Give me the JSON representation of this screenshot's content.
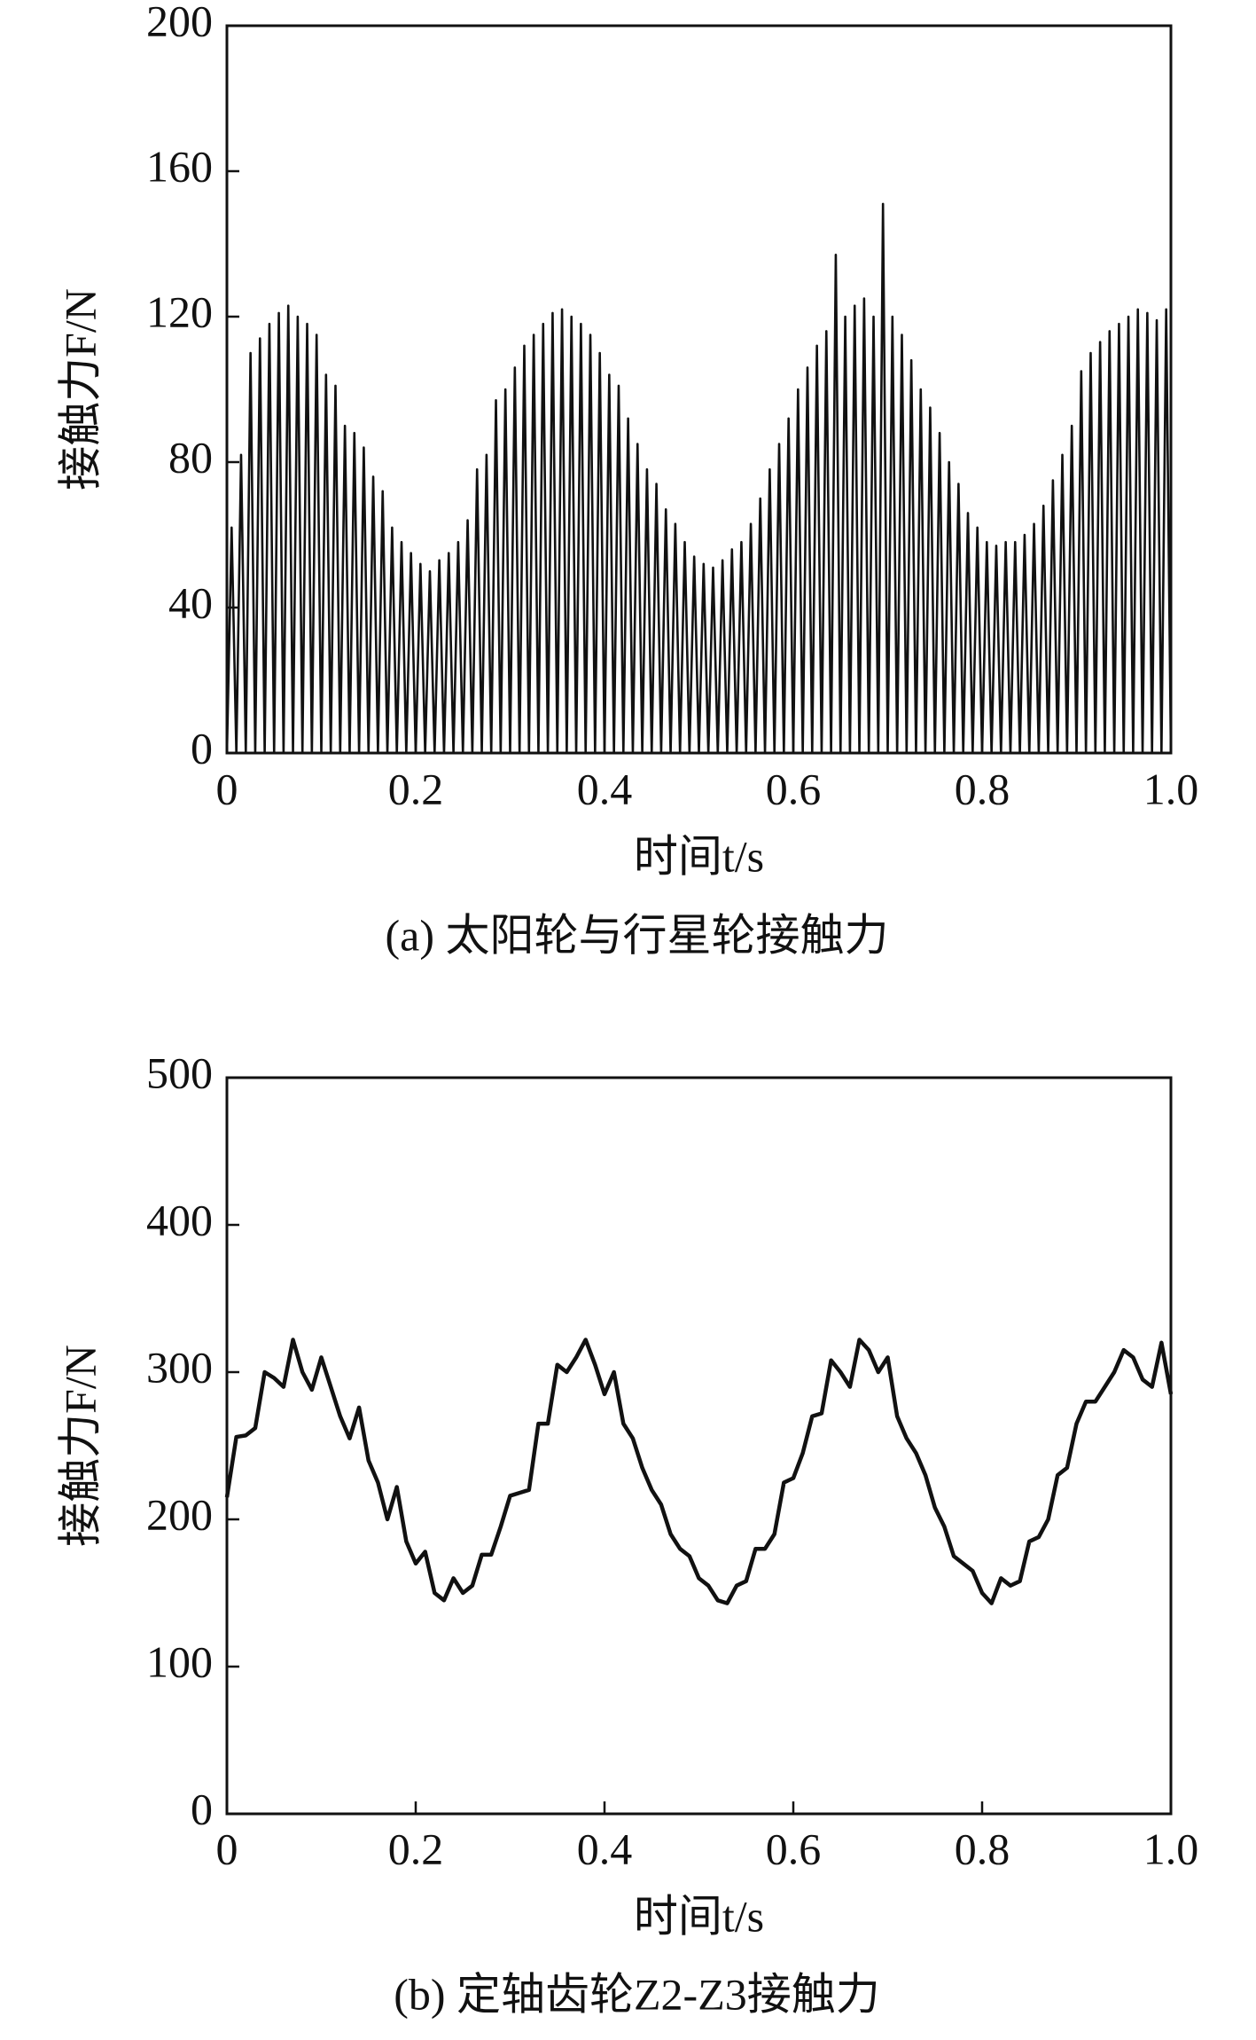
{
  "chart_data": [
    {
      "type": "line",
      "caption": "(a) 太阳轮与行星轮接触力",
      "x_label": "时间t/s",
      "y_label": "接触力F/N",
      "xlim": [
        0,
        1
      ],
      "xticks": [
        0,
        0.2,
        0.4,
        0.6,
        0.8,
        {
          "value": 1,
          "label": "1.0"
        }
      ],
      "ylim": [
        0,
        200
      ],
      "yticks": [
        0,
        40,
        80,
        120,
        160,
        200
      ],
      "x": [
        0,
        0.005,
        0.01,
        0.015,
        0.02,
        0.025,
        0.03,
        0.035,
        0.04,
        0.045,
        0.05,
        0.055,
        0.06,
        0.065,
        0.07,
        0.075,
        0.08,
        0.085,
        0.09,
        0.095,
        0.1,
        0.105,
        0.11,
        0.115,
        0.12,
        0.125,
        0.13,
        0.135,
        0.14,
        0.145,
        0.15,
        0.155,
        0.16,
        0.165,
        0.17,
        0.175,
        0.18,
        0.185,
        0.19,
        0.195,
        0.2,
        0.205,
        0.21,
        0.215,
        0.22,
        0.225,
        0.23,
        0.235,
        0.24,
        0.245,
        0.25,
        0.255,
        0.26,
        0.265,
        0.27,
        0.275,
        0.28,
        0.285,
        0.29,
        0.295,
        0.3,
        0.305,
        0.31,
        0.315,
        0.32,
        0.325,
        0.33,
        0.335,
        0.34,
        0.345,
        0.35,
        0.355,
        0.36,
        0.365,
        0.37,
        0.375,
        0.38,
        0.385,
        0.39,
        0.395,
        0.4,
        0.405,
        0.41,
        0.415,
        0.42,
        0.425,
        0.43,
        0.435,
        0.44,
        0.445,
        0.45,
        0.455,
        0.46,
        0.465,
        0.47,
        0.475,
        0.48,
        0.485,
        0.49,
        0.495,
        0.5,
        0.505,
        0.51,
        0.515,
        0.52,
        0.525,
        0.53,
        0.535,
        0.54,
        0.545,
        0.55,
        0.555,
        0.56,
        0.565,
        0.57,
        0.575,
        0.58,
        0.585,
        0.59,
        0.595,
        0.6,
        0.605,
        0.61,
        0.615,
        0.62,
        0.625,
        0.63,
        0.635,
        0.64,
        0.645,
        0.65,
        0.655,
        0.66,
        0.665,
        0.67,
        0.675,
        0.68,
        0.685,
        0.69,
        0.695,
        0.7,
        0.705,
        0.71,
        0.715,
        0.72,
        0.725,
        0.73,
        0.735,
        0.74,
        0.745,
        0.75,
        0.755,
        0.76,
        0.765,
        0.77,
        0.775,
        0.78,
        0.785,
        0.79,
        0.795,
        0.8,
        0.805,
        0.81,
        0.815,
        0.82,
        0.825,
        0.83,
        0.835,
        0.84,
        0.845,
        0.85,
        0.855,
        0.86,
        0.865,
        0.87,
        0.875,
        0.88,
        0.885,
        0.89,
        0.895,
        0.9,
        0.905,
        0.91,
        0.915,
        0.92,
        0.925,
        0.93,
        0.935,
        0.94,
        0.945,
        0.95,
        0.955,
        0.96,
        0.965,
        0.97,
        0.975,
        0.98,
        0.985,
        0.99,
        0.995,
        1
      ],
      "series": [
        {
          "color": "#111111",
          "values": [
            0,
            62,
            0,
            82,
            0,
            110,
            0,
            114,
            0,
            118,
            0,
            121,
            0,
            123,
            0,
            120,
            0,
            118,
            0,
            115,
            0,
            104,
            0,
            101,
            0,
            90,
            0,
            88,
            0,
            84,
            0,
            76,
            0,
            72,
            0,
            62,
            0,
            58,
            0,
            55,
            0,
            52,
            0,
            50,
            0,
            53,
            0,
            55,
            0,
            58,
            0,
            64,
            0,
            78,
            0,
            82,
            0,
            97,
            0,
            100,
            0,
            106,
            0,
            112,
            0,
            115,
            0,
            118,
            0,
            121,
            0,
            122,
            0,
            120,
            0,
            118,
            0,
            115,
            0,
            110,
            0,
            104,
            0,
            101,
            0,
            92,
            0,
            85,
            0,
            78,
            0,
            74,
            0,
            67,
            0,
            63,
            0,
            58,
            0,
            54,
            0,
            52,
            0,
            51,
            0,
            53,
            0,
            56,
            0,
            58,
            0,
            63,
            0,
            70,
            0,
            78,
            0,
            85,
            0,
            92,
            0,
            100,
            0,
            106,
            0,
            112,
            0,
            116,
            0,
            137,
            0,
            120,
            0,
            123,
            0,
            125,
            0,
            120,
            0,
            151,
            0,
            120,
            0,
            115,
            0,
            108,
            0,
            100,
            0,
            95,
            0,
            88,
            0,
            80,
            0,
            74,
            0,
            66,
            0,
            62,
            0,
            58,
            0,
            57,
            0,
            58,
            0,
            58,
            0,
            60,
            0,
            63,
            0,
            68,
            0,
            75,
            0,
            82,
            0,
            90,
            0,
            105,
            0,
            110,
            0,
            113,
            0,
            116,
            0,
            118,
            0,
            120,
            0,
            122,
            0,
            121,
            0,
            119,
            0,
            122,
            0
          ]
        }
      ]
    },
    {
      "type": "line",
      "caption": "(b) 定轴齿轮Z2-Z3接触力",
      "x_label": "时间t/s",
      "y_label": "接触力F/N",
      "xlim": [
        0,
        1
      ],
      "xticks": [
        0,
        0.2,
        0.4,
        0.6,
        0.8,
        {
          "value": 1,
          "label": "1.0"
        }
      ],
      "ylim": [
        0,
        500
      ],
      "yticks": [
        0,
        100,
        200,
        300,
        400,
        500
      ],
      "x": [
        0,
        0.01,
        0.02,
        0.03,
        0.04,
        0.05,
        0.06,
        0.07,
        0.08,
        0.09,
        0.1,
        0.11,
        0.12,
        0.13,
        0.14,
        0.15,
        0.16,
        0.17,
        0.18,
        0.19,
        0.2,
        0.21,
        0.22,
        0.23,
        0.24,
        0.25,
        0.26,
        0.27,
        0.28,
        0.29,
        0.3,
        0.31,
        0.32,
        0.33,
        0.34,
        0.35,
        0.36,
        0.37,
        0.38,
        0.39,
        0.4,
        0.41,
        0.42,
        0.43,
        0.44,
        0.45,
        0.46,
        0.47,
        0.48,
        0.49,
        0.5,
        0.51,
        0.52,
        0.53,
        0.54,
        0.55,
        0.56,
        0.57,
        0.58,
        0.59,
        0.6,
        0.61,
        0.62,
        0.63,
        0.64,
        0.65,
        0.66,
        0.67,
        0.68,
        0.69,
        0.7,
        0.71,
        0.72,
        0.73,
        0.74,
        0.75,
        0.76,
        0.77,
        0.78,
        0.79,
        0.8,
        0.81,
        0.82,
        0.83,
        0.84,
        0.85,
        0.86,
        0.87,
        0.88,
        0.89,
        0.9,
        0.91,
        0.92,
        0.93,
        0.94,
        0.95,
        0.96,
        0.97,
        0.98,
        0.99,
        1
      ],
      "series": [
        {
          "color": "#111111",
          "values": [
            215,
            256,
            257,
            262,
            300,
            296,
            290,
            322,
            300,
            288,
            310,
            290,
            270,
            255,
            276,
            240,
            225,
            200,
            222,
            185,
            170,
            178,
            150,
            145,
            160,
            150,
            155,
            176,
            176,
            195,
            216,
            218,
            220,
            265,
            265,
            305,
            300,
            310,
            322,
            305,
            285,
            300,
            265,
            255,
            235,
            220,
            210,
            190,
            180,
            175,
            160,
            155,
            145,
            143,
            155,
            158,
            180,
            180,
            190,
            225,
            228,
            245,
            270,
            272,
            308,
            300,
            290,
            322,
            315,
            300,
            310,
            270,
            255,
            245,
            230,
            208,
            195,
            175,
            170,
            165,
            150,
            143,
            160,
            155,
            158,
            185,
            188,
            200,
            230,
            235,
            265,
            280,
            280,
            290,
            300,
            315,
            310,
            295,
            290,
            320,
            285
          ]
        }
      ]
    }
  ]
}
